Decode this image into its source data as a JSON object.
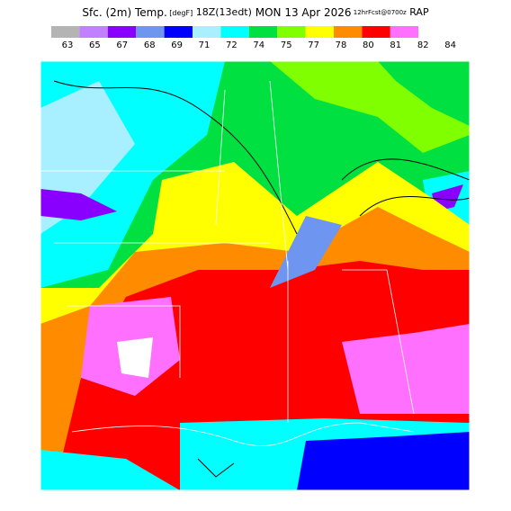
{
  "header": {
    "parts": [
      "Sfc. (2m) Temp.",
      "[degF]",
      "18Z(13edt)",
      "MON 13 Apr 2026",
      "12hrFcst@0700z",
      "RAP"
    ]
  },
  "legend": {
    "labels": [
      "63",
      "65",
      "67",
      "68",
      "69",
      "71",
      "72",
      "74",
      "75",
      "77",
      "78",
      "80",
      "81",
      "82",
      "84"
    ],
    "colors": [
      "#b4b4b4",
      "#c080ff",
      "#8a00ff",
      "#6e96f0",
      "#0000ff",
      "#a8f0ff",
      "#00ffff",
      "#00e040",
      "#80ff00",
      "#ffff00",
      "#ff8c00",
      "#ff0000",
      "#ff70ff",
      "#ffffff"
    ]
  }
}
